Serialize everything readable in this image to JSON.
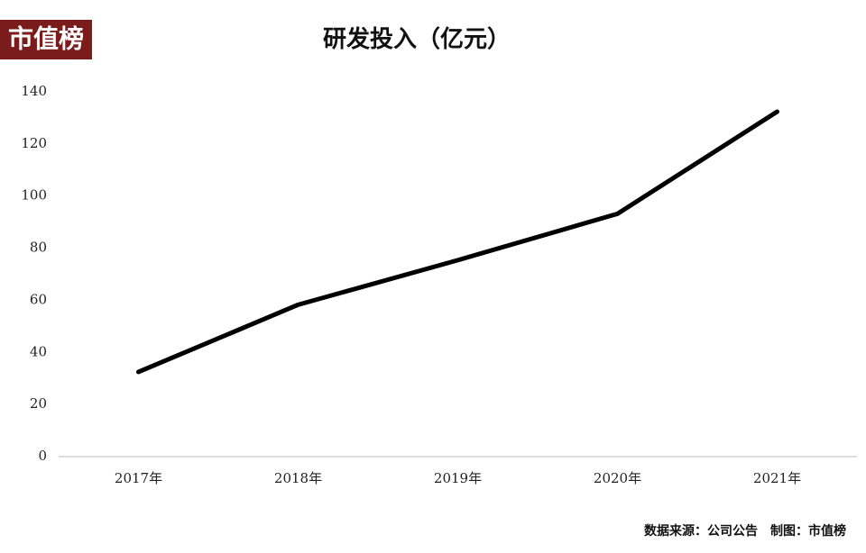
{
  "chart_data": {
    "type": "line",
    "title": "研发投入（亿元）",
    "logo": "市值榜",
    "source": "数据来源：公司公告　制图：市值榜",
    "categories": [
      "2017年",
      "2018年",
      "2019年",
      "2020年",
      "2021年"
    ],
    "values": [
      32.5,
      58.3,
      75.4,
      93.2,
      132.4
    ],
    "color": "#000000",
    "ylim": [
      0,
      140
    ],
    "yticks": [
      0,
      20,
      40,
      60,
      80,
      100,
      120,
      140
    ],
    "grid": false
  }
}
